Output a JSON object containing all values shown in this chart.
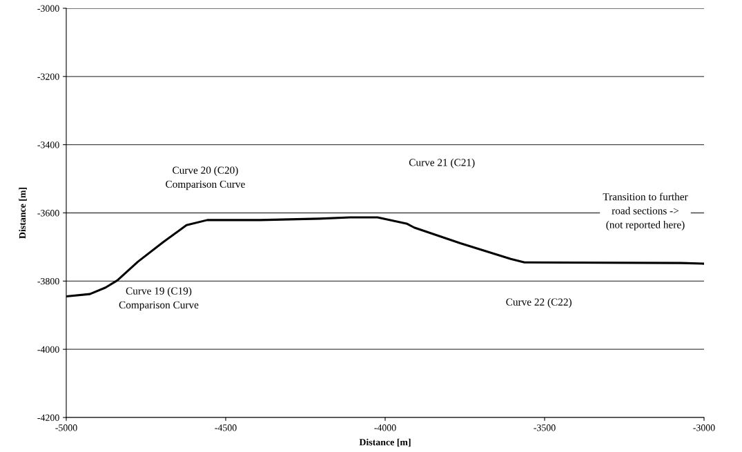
{
  "chart_data": {
    "type": "line",
    "xlabel": "Distance [m]",
    "ylabel": "Distance [m]",
    "x": [
      -5000,
      -4926,
      -4877,
      -4840,
      -4775,
      -4695,
      -4623,
      -4558,
      -4392,
      -4206,
      -4110,
      -4024,
      -3931,
      -3909,
      -3764,
      -3606,
      -3563,
      -3071,
      -3000
    ],
    "series": [
      {
        "color": "#000000",
        "values": [
          -3845,
          -3838,
          -3819,
          -3798,
          -3743,
          -3685,
          -3636,
          -3621,
          -3621,
          -3617,
          -3613,
          -3613,
          -3632,
          -3643,
          -3689,
          -3735,
          -3745,
          -3747,
          -3749
        ]
      }
    ],
    "xlim": [
      -5000,
      -3000
    ],
    "xticks": [
      -5000,
      -4500,
      -4000,
      -3500,
      -3000
    ],
    "ylim": [
      -4200,
      -3000
    ],
    "yticks": [
      -4200,
      -4000,
      -3800,
      -3600,
      -3400,
      -3200,
      -3000
    ],
    "grid": "y",
    "legend": false,
    "marker": "none",
    "line_style": "solid",
    "annotations": [
      "Curve 20 (C20)\nComparison Curve",
      "Curve 21 (C21)",
      "Transition to further\nroad sections ->\n(not reported here)",
      "Curve 19 (C19)\nComparison Curve",
      "Curve 22 (C22)"
    ]
  }
}
